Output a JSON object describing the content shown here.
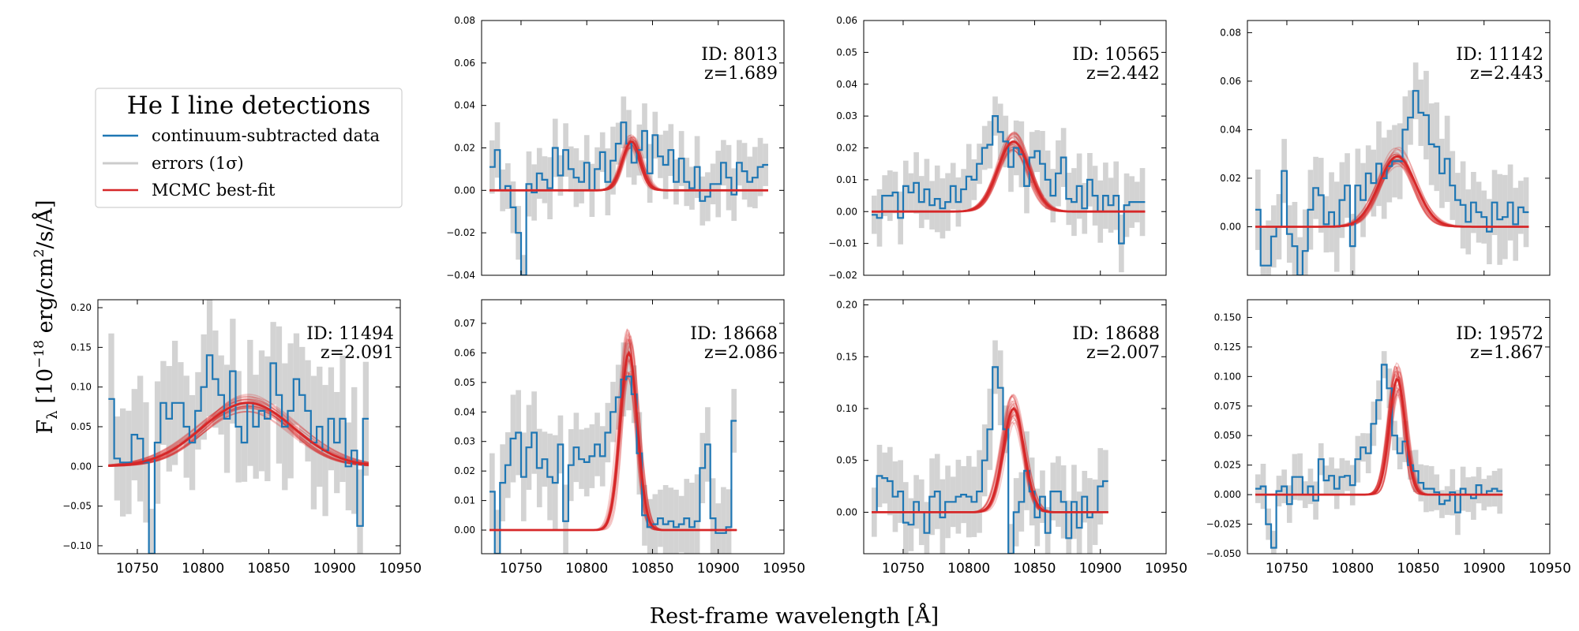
{
  "figure": {
    "xlabel": "Rest-frame wavelength [Å]",
    "ylabel": "F",
    "ylabel_sub": "λ",
    "ylabel_unit_pre": " [10",
    "ylabel_exp": "−18",
    "ylabel_unit_post": " erg/cm",
    "ylabel_exp2": "2",
    "ylabel_unit_tail": "/s/Å]"
  },
  "legend": {
    "title": "He I line detections",
    "entries": [
      {
        "label": "continuum-subtracted data",
        "color": "#1f77b4"
      },
      {
        "label": "errors (1σ)",
        "color": "#cccccc"
      },
      {
        "label": "MCMC best-fit",
        "color": "#d62728"
      }
    ]
  },
  "colors": {
    "data": "#1f77b4",
    "error": "#d3d3d3",
    "fit": "#d62728"
  },
  "chart_data": [
    {
      "type": "line",
      "id_label": "ID: 8013",
      "z_label": "z=1.689",
      "xlim": [
        10720,
        10950
      ],
      "ylim": [
        -0.04,
        0.08
      ],
      "yticks": [
        -0.04,
        -0.02,
        0.0,
        0.02,
        0.04,
        0.06,
        0.08
      ],
      "ytick_labels": [
        "−0.04",
        "−0.02",
        "0.00",
        "0.02",
        "0.04",
        "0.06",
        "0.08"
      ],
      "xticks": [
        10750,
        10800,
        10850,
        10900,
        10950
      ],
      "xtick_labels": [],
      "gauss": {
        "amp": 0.023,
        "center": 10834,
        "sigma": 7
      },
      "data_start": 10726,
      "data_step": 4,
      "data": [
        0.011,
        0.019,
        0.0,
        0.002,
        -0.008,
        -0.02,
        -0.04,
        0.003,
        -0.001,
        0.008,
        0.005,
        0.001,
        0.02,
        0.007,
        0.019,
        0.01,
        0.006,
        0.004,
        0.013,
        0.0,
        0.01,
        0.018,
        0.004,
        0.014,
        0.022,
        0.032,
        0.022,
        0.013,
        0.019,
        0.028,
        0.008,
        0.026,
        0.016,
        0.012,
        0.019,
        0.004,
        0.015,
        0.004,
        0.001,
        0.011,
        -0.005,
        -0.003,
        0.003,
        0.003,
        0.013,
        0.006,
        -0.002,
        0.013,
        0.009,
        0.004,
        0.006,
        0.011,
        0.012
      ],
      "err": 0.012
    },
    {
      "type": "line",
      "id_label": "ID: 10565",
      "z_label": "z=2.442",
      "xlim": [
        10720,
        10950
      ],
      "ylim": [
        -0.02,
        0.06
      ],
      "yticks": [
        -0.02,
        -0.01,
        0.0,
        0.01,
        0.02,
        0.03,
        0.04,
        0.05,
        0.06
      ],
      "ytick_labels": [
        "−0.02",
        "−0.01",
        "0.00",
        "0.01",
        "0.02",
        "0.03",
        "0.04",
        "0.05",
        "0.06"
      ],
      "xticks": [
        10750,
        10800,
        10850,
        10900,
        10950
      ],
      "xtick_labels": [],
      "gauss": {
        "amp": 0.022,
        "center": 10834,
        "sigma": 12
      },
      "data_start": 10726,
      "data_step": 4,
      "data": [
        -0.001,
        -0.002,
        0.005,
        0.005,
        0.006,
        -0.002,
        0.008,
        0.006,
        0.009,
        0.003,
        0.007,
        0.002,
        0.004,
        0.001,
        0.003,
        0.008,
        0.003,
        0.007,
        0.011,
        0.01,
        0.015,
        0.02,
        0.021,
        0.03,
        0.025,
        0.022,
        0.014,
        0.02,
        0.018,
        0.008,
        0.017,
        0.019,
        0.015,
        0.01,
        0.005,
        0.012,
        0.017,
        0.004,
        0.003,
        0.008,
        0.001,
        0.01,
        0.005,
        0.0,
        0.005,
        0.002,
        0.005,
        -0.01,
        0.002,
        0.003,
        0.003,
        0.003
      ],
      "err": 0.008
    },
    {
      "type": "line",
      "id_label": "ID: 11142",
      "z_label": "z=2.443",
      "xlim": [
        10720,
        10950
      ],
      "ylim": [
        -0.02,
        0.085
      ],
      "yticks": [
        0.0,
        0.02,
        0.04,
        0.06,
        0.08
      ],
      "ytick_labels": [
        "0.00",
        "0.02",
        "0.04",
        "0.06",
        "0.08"
      ],
      "xticks": [
        10750,
        10800,
        10850,
        10900,
        10950
      ],
      "xtick_labels": [],
      "gauss": {
        "amp": 0.029,
        "center": 10834,
        "sigma": 14
      },
      "data_start": 10726,
      "data_step": 4,
      "data": [
        0.007,
        -0.016,
        -0.016,
        -0.004,
        0.0,
        0.023,
        -0.003,
        -0.008,
        -0.02,
        -0.01,
        0.007,
        0.016,
        0.013,
        0.001,
        0.006,
        0.0,
        0.011,
        0.017,
        -0.008,
        0.017,
        0.011,
        0.022,
        0.018,
        0.026,
        0.02,
        0.025,
        0.027,
        0.027,
        0.04,
        0.045,
        0.056,
        0.047,
        0.046,
        0.034,
        0.033,
        0.022,
        0.028,
        0.017,
        0.011,
        0.009,
        0.002,
        0.01,
        0.006,
        0.004,
        -0.002,
        0.01,
        0.003,
        0.004,
        0.01,
        0.001,
        0.008,
        0.006
      ],
      "err": 0.014
    },
    {
      "type": "line",
      "id_label": "ID: 11494",
      "z_label": "z=2.091",
      "xlim": [
        10720,
        10950
      ],
      "ylim": [
        -0.11,
        0.21
      ],
      "yticks": [
        -0.1,
        -0.05,
        0.0,
        0.05,
        0.1,
        0.15,
        0.2
      ],
      "ytick_labels": [
        "−0.10",
        "−0.05",
        "0.00",
        "0.05",
        "0.10",
        "0.15",
        "0.20"
      ],
      "xticks": [
        10750,
        10800,
        10850,
        10900,
        10950
      ],
      "xtick_labels": [
        "10750",
        "10800",
        "10850",
        "10900",
        "10950"
      ],
      "gauss": {
        "amp": 0.08,
        "center": 10834,
        "sigma": 35
      },
      "data_start": 10728,
      "data_step": 4.4,
      "data": [
        0.085,
        0.01,
        0.005,
        0.005,
        0.04,
        0.035,
        0.005,
        -0.11,
        0.03,
        0.08,
        0.06,
        0.08,
        0.08,
        0.05,
        0.03,
        0.07,
        0.1,
        0.14,
        0.11,
        0.09,
        0.06,
        0.12,
        0.05,
        0.03,
        0.08,
        0.05,
        0.07,
        0.06,
        0.13,
        0.09,
        0.05,
        0.07,
        0.11,
        0.09,
        0.07,
        0.03,
        0.05,
        0.02,
        0.06,
        0.03,
        0.06,
        0.0,
        0.02,
        -0.075,
        0.06
      ],
      "err": 0.065
    },
    {
      "type": "line",
      "id_label": "ID: 18668",
      "z_label": "z=2.086",
      "xlim": [
        10720,
        10950
      ],
      "ylim": [
        -0.008,
        0.078
      ],
      "yticks": [
        0.0,
        0.01,
        0.02,
        0.03,
        0.04,
        0.05,
        0.06,
        0.07
      ],
      "ytick_labels": [
        "0.00",
        "0.01",
        "0.02",
        "0.03",
        "0.04",
        "0.05",
        "0.06",
        "0.07"
      ],
      "xticks": [
        10750,
        10800,
        10850,
        10900,
        10950
      ],
      "xtick_labels": [
        "10750",
        "10800",
        "10850",
        "10900",
        "10950"
      ],
      "gauss": {
        "amp": 0.06,
        "center": 10832,
        "sigma": 6.5
      },
      "data_start": 10726,
      "data_step": 4,
      "data": [
        0.013,
        -0.008,
        0.016,
        0.022,
        0.031,
        0.033,
        0.018,
        0.028,
        0.033,
        0.021,
        0.024,
        0.018,
        0.016,
        0.029,
        0.003,
        0.022,
        0.028,
        0.024,
        0.023,
        0.025,
        0.029,
        0.025,
        0.033,
        0.04,
        0.045,
        0.051,
        0.052,
        0.046,
        0.026,
        0.005,
        0.001,
        0.002,
        0.004,
        0.002,
        0.003,
        0.001,
        0.002,
        0.004,
        0.001,
        0.003,
        0.021,
        0.029,
        0.004,
        -0.001,
        -0.001,
        0.001,
        0.037
      ],
      "err": 0.012
    },
    {
      "type": "line",
      "id_label": "ID: 18688",
      "z_label": "z=2.007",
      "xlim": [
        10720,
        10950
      ],
      "ylim": [
        -0.04,
        0.205
      ],
      "yticks": [
        0.0,
        0.05,
        0.1,
        0.15,
        0.2
      ],
      "ytick_labels": [
        "0.00",
        "0.05",
        "0.10",
        "0.15",
        "0.20"
      ],
      "xticks": [
        10750,
        10800,
        10850,
        10900,
        10950
      ],
      "xtick_labels": [
        "10750",
        "10800",
        "10850",
        "10900",
        "10950"
      ],
      "gauss": {
        "amp": 0.1,
        "center": 10834,
        "sigma": 8
      },
      "data_start": 10726,
      "data_step": 4,
      "data": [
        0.0,
        0.035,
        0.033,
        0.03,
        0.015,
        0.02,
        -0.01,
        -0.012,
        0.01,
        0.0,
        -0.02,
        0.015,
        0.02,
        -0.005,
        0.01,
        0.01,
        0.015,
        0.017,
        0.015,
        0.01,
        0.02,
        0.05,
        0.08,
        0.14,
        0.12,
        0.08,
        -0.04,
        0.0,
        0.01,
        0.04,
        0.02,
        -0.005,
        0.015,
        -0.02,
        0.02,
        0.02,
        0.01,
        -0.025,
        0.01,
        -0.015,
        0.015,
        -0.005,
        0.0,
        0.025,
        0.03
      ],
      "err": 0.03
    },
    {
      "type": "line",
      "id_label": "ID: 19572",
      "z_label": "z=1.867",
      "xlim": [
        10720,
        10950
      ],
      "ylim": [
        -0.05,
        0.165
      ],
      "yticks": [
        -0.05,
        -0.025,
        0.0,
        0.025,
        0.05,
        0.075,
        0.1,
        0.125,
        0.15
      ],
      "ytick_labels": [
        "−0.050",
        "−0.025",
        "0.000",
        "0.025",
        "0.050",
        "0.075",
        "0.100",
        "0.125",
        "0.150"
      ],
      "xticks": [
        10750,
        10800,
        10850,
        10900,
        10950
      ],
      "xtick_labels": [
        "10750",
        "10800",
        "10850",
        "10900",
        "10950"
      ],
      "gauss": {
        "amp": 0.098,
        "center": 10834,
        "sigma": 6
      },
      "data_start": 10726,
      "data_step": 4,
      "data": [
        0.005,
        0.007,
        -0.025,
        -0.045,
        0.003,
        0.007,
        -0.008,
        0.015,
        0.015,
        0.0,
        0.007,
        -0.005,
        0.03,
        0.012,
        0.016,
        0.005,
        0.015,
        0.016,
        0.008,
        0.03,
        0.04,
        0.035,
        0.06,
        0.08,
        0.11,
        0.09,
        0.05,
        0.035,
        0.045,
        0.025,
        0.02,
        0.01,
        0.005,
        0.005,
        0.002,
        -0.008,
        -0.005,
        0.002,
        -0.015,
        0.005,
        0.0,
        -0.003,
        0.008,
        0.0,
        0.003,
        0.005,
        0.003
      ],
      "err": 0.015
    }
  ]
}
